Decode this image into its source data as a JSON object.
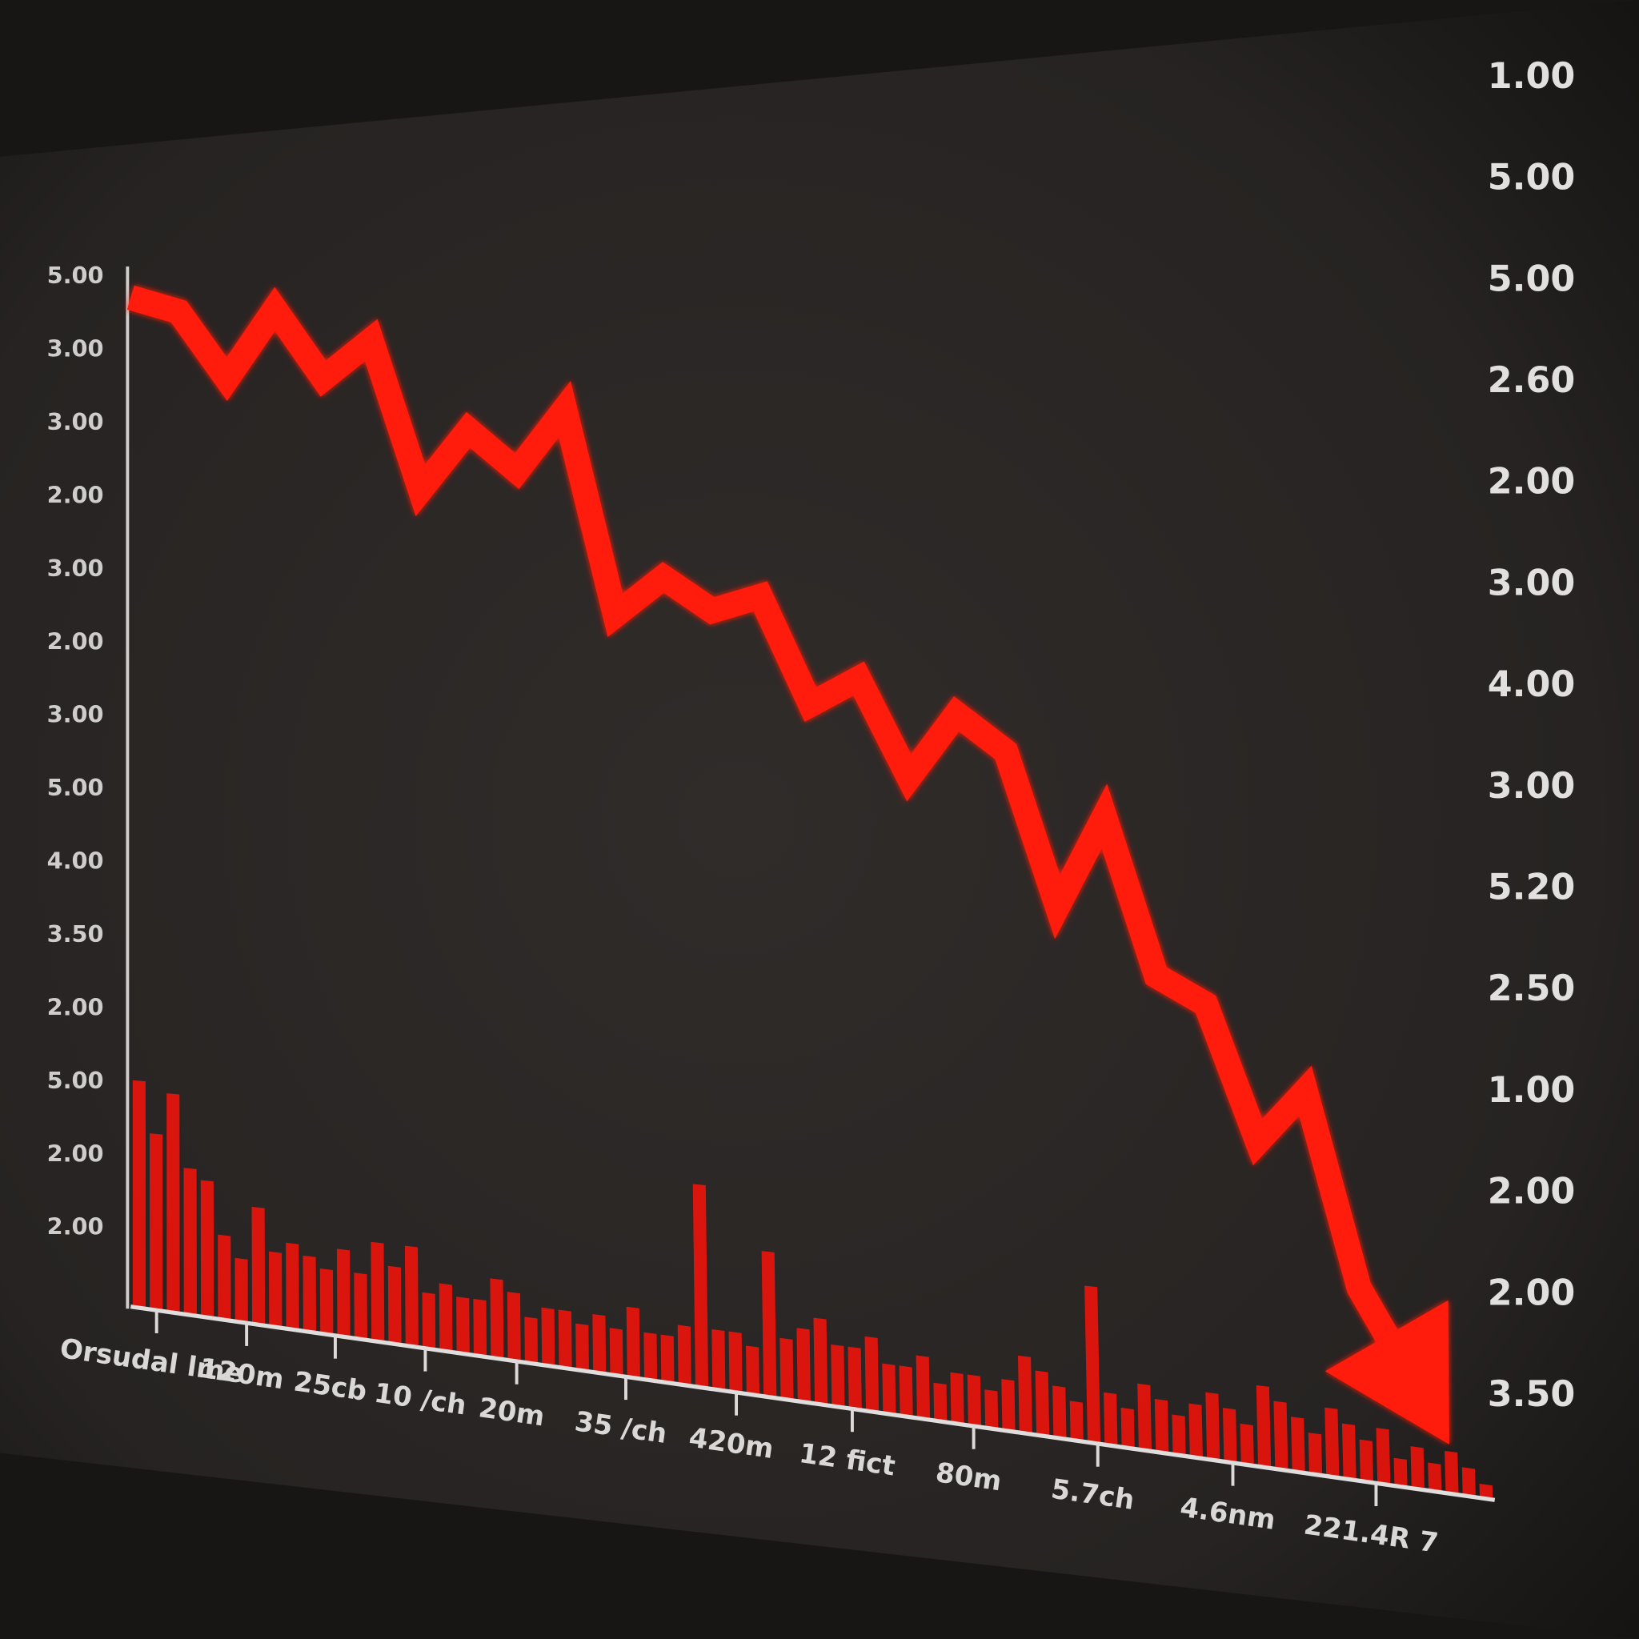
{
  "chart_data": {
    "type": "line",
    "ylim": [
      0,
      100
    ],
    "left_labels": [
      "5.00",
      "3.00",
      "3.00",
      "2.00",
      "3.00",
      "2.00",
      "3.00",
      "5.00",
      "4.00",
      "3.50",
      "2.00",
      "5.00",
      "2.00",
      "2.00"
    ],
    "right_labels": [
      "1.00",
      "5.00",
      "5.00",
      "2.60",
      "2.00",
      "3.00",
      "4.00",
      "3.00",
      "5.20",
      "2.50",
      "1.00",
      "2.00",
      "2.00",
      "3.50"
    ],
    "x_labels": [
      "Orsudal lme",
      "120m",
      "25cb",
      "10 /ch",
      "20m",
      "35 /ch",
      "420m",
      "12 fict",
      "80m",
      "5.7ch",
      "4.6nm",
      "221.4R 7"
    ],
    "line": {
      "color": "#ff1a0f",
      "values": [
        98,
        96,
        89,
        95,
        88,
        91,
        77,
        82,
        78,
        83,
        65,
        68,
        65,
        66,
        57,
        59,
        51,
        56,
        53,
        41,
        48,
        36,
        34,
        24,
        28,
        14,
        8
      ]
    },
    "bars": {
      "color": "#e8140c",
      "values": [
        22,
        17,
        21,
        14,
        13,
        8,
        6,
        11,
        7,
        8,
        7,
        6,
        8,
        6,
        9,
        7,
        9,
        5,
        6,
        5,
        5,
        7,
        6,
        4,
        5,
        5,
        4,
        5,
        4,
        6,
        4,
        4,
        5,
        17,
        5,
        5,
        4,
        12,
        5,
        6,
        7,
        5,
        5,
        6,
        4,
        4,
        5,
        3,
        4,
        4,
        3,
        4,
        6,
        5,
        4,
        3,
        12,
        4,
        3,
        5,
        4,
        3,
        4,
        5,
        4,
        3,
        6,
        5,
        4,
        3,
        5,
        4,
        3,
        4,
        2,
        3,
        2,
        3,
        2,
        1
      ]
    }
  }
}
